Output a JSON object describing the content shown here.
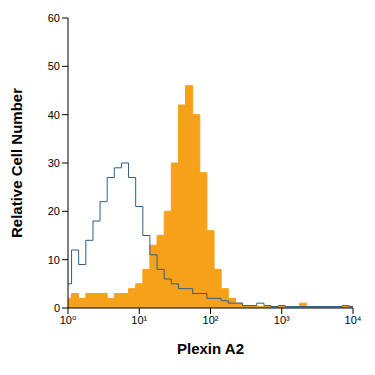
{
  "chart_data": {
    "type": "histogram",
    "x_label": "Plexin A2",
    "y_label": "Relative Cell Number",
    "log": "x",
    "grid": false,
    "xlim": [
      1,
      10000
    ],
    "xticks": [
      {
        "value": 1,
        "label": "10⁰"
      },
      {
        "value": 10,
        "label": "10¹"
      },
      {
        "value": 100,
        "label": "10²"
      },
      {
        "value": 1000,
        "label": "10³"
      },
      {
        "value": 10000,
        "label": "10⁴"
      }
    ],
    "ylim": [
      0,
      60
    ],
    "yticks": [
      0,
      10,
      20,
      30,
      40,
      50,
      60
    ],
    "x": [
      1,
      1.26,
      1.58,
      2,
      2.51,
      3.16,
      3.98,
      5.01,
      6.31,
      7.94,
      10,
      12.6,
      15.8,
      20,
      25.1,
      31.6,
      39.8,
      50.1,
      63.1,
      79.4,
      100,
      126,
      158,
      200,
      251,
      316,
      398,
      501,
      631,
      794,
      1000,
      1260,
      1580,
      2000,
      2510,
      3160,
      3980,
      5010,
      6310,
      7940,
      10000
    ],
    "series": [
      {
        "type": "area",
        "color": "#f7a11a",
        "values": [
          2,
          3,
          2,
          3,
          3,
          3,
          2,
          3,
          3,
          4,
          5,
          8,
          13,
          15,
          20,
          30,
          42,
          46,
          40,
          28,
          16,
          8,
          4,
          2,
          1,
          0.5,
          0.5,
          0.3,
          0.3,
          0.3,
          0.3,
          0.3,
          0.3,
          1,
          0.3,
          0.3,
          0.3,
          0.3,
          0.3,
          0.3,
          0.3
        ]
      },
      {
        "type": "line",
        "color": "#2b5f8a",
        "values": [
          5,
          12,
          9,
          14,
          18,
          22,
          27,
          29,
          30,
          27,
          21,
          15,
          11,
          8,
          6,
          5,
          4,
          4,
          3,
          3,
          2,
          2,
          1.5,
          1,
          1,
          0.5,
          0.5,
          1,
          0.5,
          0.3,
          0.5,
          0.3,
          0.3,
          0.3,
          0.3,
          0.3,
          0.3,
          0.3,
          0.3,
          0.5,
          0.3
        ]
      }
    ]
  }
}
